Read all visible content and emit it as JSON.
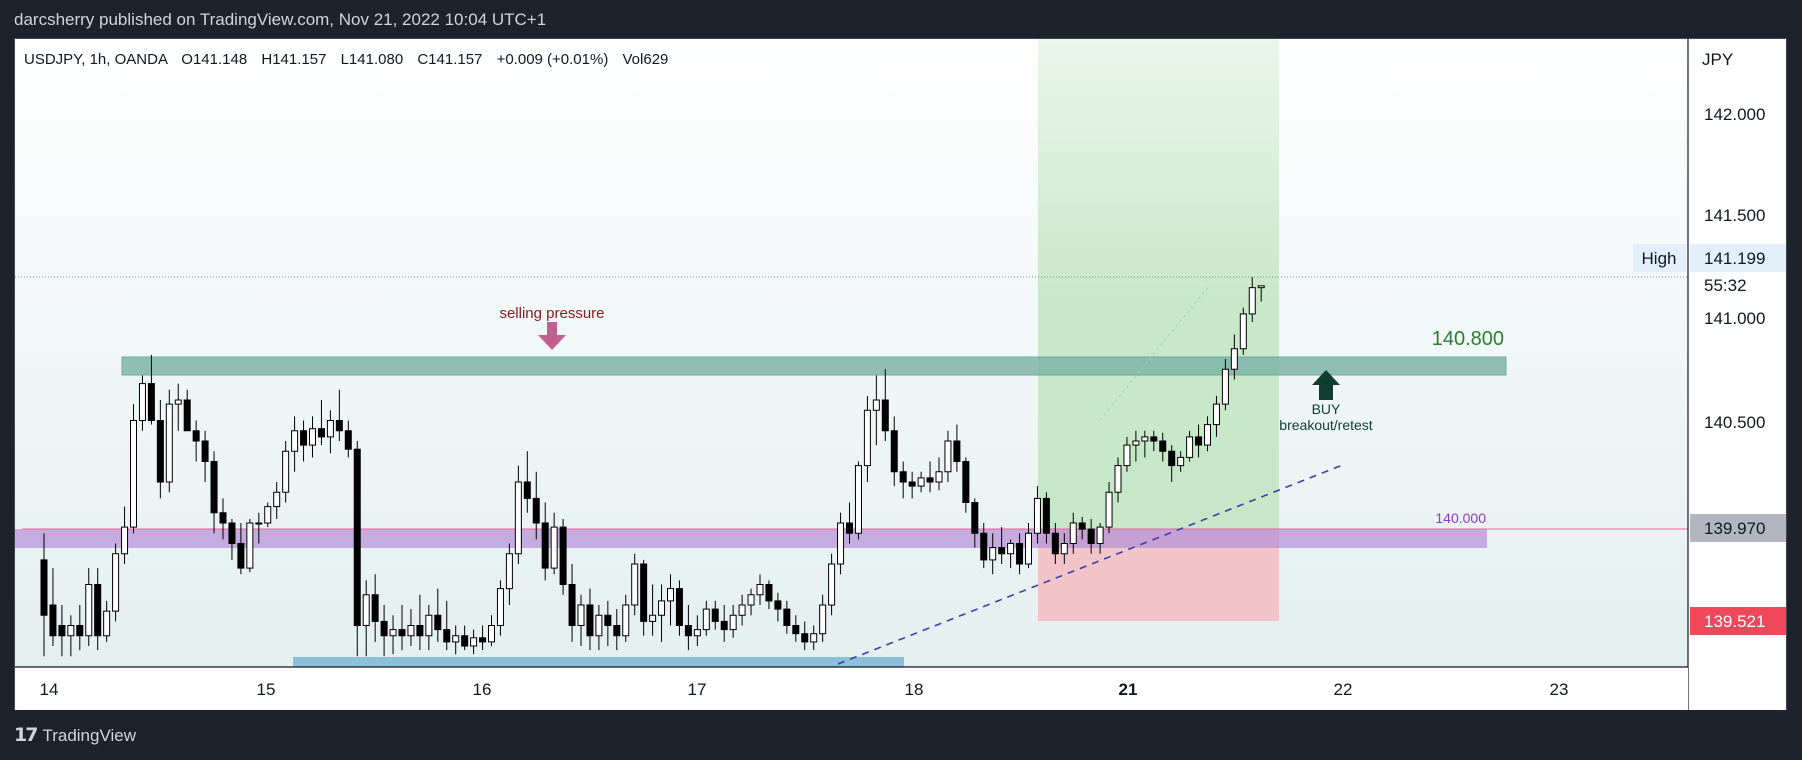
{
  "header": {
    "publisher": "darcsherry published on TradingView.com, Nov 21, 2022 10:04 UTC+1"
  },
  "footer": {
    "brand": "TradingView"
  },
  "legend": {
    "symbol": "USDJPY, 1h, OANDA",
    "open": "O141.148",
    "high": "H141.157",
    "low": "L141.080",
    "close": "C141.157",
    "change": "+0.009 (+0.01%)",
    "volume": "Vol629"
  },
  "price_axis": {
    "currency": "JPY",
    "ticks": [
      "142.000",
      "141.500",
      "141.000",
      "140.500"
    ],
    "high_label": "High",
    "high_value": "141.199",
    "countdown": "55:32",
    "marker_gray": "139.970",
    "marker_red": "139.521"
  },
  "time_axis": {
    "ticks": [
      "14",
      "15",
      "16",
      "17",
      "18",
      "21",
      "22",
      "23"
    ]
  },
  "annotations": {
    "selling": "selling pressure",
    "resistance_label": "140.800",
    "support_label": "140.000",
    "buy": "BUY",
    "buy_sub": "breakout/retest"
  },
  "colors": {
    "background": "#1e222d",
    "up_body": "#ffffff",
    "down_body": "#000000",
    "resistance_zone": "#7fb5a8",
    "support_zone": "#b48fd8",
    "profit_zone": "#b9e4b9",
    "stop_zone": "#f3b9bf",
    "trend_line": "#3a3fa8",
    "sell_arrow": "#c0608f",
    "buy_arrow": "#0f3d2e",
    "price_red": "#f0485b"
  },
  "chart_data": {
    "type": "candlestick",
    "symbol": "USDJPY",
    "timeframe": "1h",
    "ylim": [
      139.35,
      142.3
    ],
    "x_ticks": [
      "14",
      "15",
      "16",
      "17",
      "18",
      "21",
      "22",
      "23"
    ],
    "levels": {
      "resistance": 140.8,
      "support": 140.0,
      "last_high": 141.199
    },
    "trade": {
      "entry": 139.97,
      "target": 141.1,
      "stop": 139.521
    },
    "candles": [
      [
        139.82,
        139.95,
        139.35,
        139.55
      ],
      [
        139.6,
        139.78,
        139.4,
        139.45
      ],
      [
        139.5,
        139.6,
        139.35,
        139.45
      ],
      [
        139.45,
        139.55,
        139.35,
        139.5
      ],
      [
        139.5,
        139.6,
        139.38,
        139.45
      ],
      [
        139.45,
        139.78,
        139.4,
        139.7
      ],
      [
        139.7,
        139.78,
        139.38,
        139.45
      ],
      [
        139.45,
        139.62,
        139.42,
        139.57
      ],
      [
        139.57,
        139.9,
        139.52,
        139.85
      ],
      [
        139.85,
        140.08,
        139.8,
        139.98
      ],
      [
        139.98,
        140.58,
        139.95,
        140.5
      ],
      [
        140.5,
        140.72,
        140.45,
        140.68
      ],
      [
        140.68,
        140.82,
        140.48,
        140.5
      ],
      [
        140.5,
        140.6,
        140.12,
        140.2
      ],
      [
        140.2,
        140.65,
        140.15,
        140.58
      ],
      [
        140.58,
        140.68,
        140.45,
        140.6
      ],
      [
        140.6,
        140.65,
        140.45,
        140.45
      ],
      [
        140.45,
        140.5,
        140.3,
        140.4
      ],
      [
        140.4,
        140.45,
        140.2,
        140.3
      ],
      [
        140.3,
        140.35,
        139.95,
        140.05
      ],
      [
        140.05,
        140.12,
        139.92,
        140.0
      ],
      [
        140.0,
        140.02,
        139.82,
        139.9
      ],
      [
        139.9,
        140.0,
        139.75,
        139.78
      ],
      [
        139.78,
        140.02,
        139.76,
        140.0
      ],
      [
        140.0,
        140.05,
        139.9,
        140.0
      ],
      [
        140.0,
        140.1,
        139.98,
        140.08
      ],
      [
        140.08,
        140.2,
        140.02,
        140.15
      ],
      [
        140.15,
        140.4,
        140.1,
        140.35
      ],
      [
        140.35,
        140.52,
        140.25,
        140.45
      ],
      [
        140.45,
        140.5,
        140.3,
        140.38
      ],
      [
        140.38,
        140.52,
        140.32,
        140.46
      ],
      [
        140.46,
        140.6,
        140.38,
        140.42
      ],
      [
        140.42,
        140.55,
        140.34,
        140.5
      ],
      [
        140.5,
        140.65,
        140.4,
        140.45
      ],
      [
        140.45,
        140.5,
        140.32,
        140.36
      ],
      [
        140.36,
        140.4,
        139.35,
        139.5
      ],
      [
        139.5,
        139.72,
        139.35,
        139.65
      ],
      [
        139.65,
        139.75,
        139.42,
        139.52
      ],
      [
        139.52,
        139.6,
        139.35,
        139.45
      ],
      [
        139.45,
        139.55,
        139.36,
        139.48
      ],
      [
        139.48,
        139.6,
        139.38,
        139.45
      ],
      [
        139.45,
        139.58,
        139.4,
        139.5
      ],
      [
        139.5,
        139.65,
        139.38,
        139.45
      ],
      [
        139.45,
        139.6,
        139.38,
        139.55
      ],
      [
        139.55,
        139.68,
        139.42,
        139.48
      ],
      [
        139.48,
        139.62,
        139.38,
        139.42
      ],
      [
        139.42,
        139.5,
        139.36,
        139.45
      ],
      [
        139.45,
        139.5,
        139.38,
        139.4
      ],
      [
        139.4,
        139.48,
        139.36,
        139.44
      ],
      [
        139.44,
        139.5,
        139.38,
        139.42
      ],
      [
        139.42,
        139.55,
        139.4,
        139.5
      ],
      [
        139.5,
        139.72,
        139.45,
        139.68
      ],
      [
        139.68,
        139.9,
        139.6,
        139.85
      ],
      [
        139.85,
        140.28,
        139.8,
        140.2
      ],
      [
        140.2,
        140.35,
        140.05,
        140.12
      ],
      [
        140.12,
        140.25,
        139.92,
        140.0
      ],
      [
        140.0,
        140.1,
        139.72,
        139.78
      ],
      [
        139.78,
        140.05,
        139.75,
        139.98
      ],
      [
        139.98,
        140.02,
        139.65,
        139.7
      ],
      [
        139.7,
        139.8,
        139.42,
        139.5
      ],
      [
        139.5,
        139.65,
        139.4,
        139.6
      ],
      [
        139.6,
        139.68,
        139.38,
        139.45
      ],
      [
        139.45,
        139.6,
        139.38,
        139.55
      ],
      [
        139.55,
        139.62,
        139.4,
        139.5
      ],
      [
        139.5,
        139.58,
        139.38,
        139.45
      ],
      [
        139.45,
        139.65,
        139.42,
        139.6
      ],
      [
        139.6,
        139.85,
        139.55,
        139.8
      ],
      [
        139.8,
        139.82,
        139.45,
        139.52
      ],
      [
        139.52,
        139.7,
        139.45,
        139.55
      ],
      [
        139.55,
        139.7,
        139.42,
        139.62
      ],
      [
        139.62,
        139.75,
        139.5,
        139.68
      ],
      [
        139.68,
        139.72,
        139.45,
        139.5
      ],
      [
        139.5,
        139.6,
        139.38,
        139.45
      ],
      [
        139.45,
        139.55,
        139.4,
        139.48
      ],
      [
        139.48,
        139.62,
        139.45,
        139.58
      ],
      [
        139.58,
        139.62,
        139.48,
        139.52
      ],
      [
        139.52,
        139.6,
        139.42,
        139.48
      ],
      [
        139.48,
        139.6,
        139.44,
        139.55
      ],
      [
        139.55,
        139.65,
        139.5,
        139.6
      ],
      [
        139.6,
        139.68,
        139.55,
        139.65
      ],
      [
        139.65,
        139.75,
        139.6,
        139.7
      ],
      [
        139.7,
        139.72,
        139.58,
        139.62
      ],
      [
        139.62,
        139.66,
        139.52,
        139.58
      ],
      [
        139.58,
        139.62,
        139.46,
        139.5
      ],
      [
        139.5,
        139.55,
        139.42,
        139.46
      ],
      [
        139.46,
        139.52,
        139.38,
        139.42
      ],
      [
        139.42,
        139.5,
        139.38,
        139.46
      ],
      [
        139.46,
        139.65,
        139.42,
        139.6
      ],
      [
        139.6,
        139.85,
        139.55,
        139.8
      ],
      [
        139.8,
        140.05,
        139.75,
        140.0
      ],
      [
        140.0,
        140.1,
        139.9,
        139.95
      ],
      [
        139.95,
        140.3,
        139.92,
        140.28
      ],
      [
        140.28,
        140.62,
        140.2,
        140.55
      ],
      [
        140.55,
        140.72,
        140.38,
        140.6
      ],
      [
        140.6,
        140.75,
        140.4,
        140.45
      ],
      [
        140.45,
        140.52,
        140.18,
        140.25
      ],
      [
        140.25,
        140.3,
        140.12,
        140.2
      ],
      [
        140.2,
        140.25,
        140.12,
        140.18
      ],
      [
        140.18,
        140.25,
        140.15,
        140.22
      ],
      [
        140.22,
        140.3,
        140.15,
        140.2
      ],
      [
        140.2,
        140.32,
        140.16,
        140.25
      ],
      [
        140.25,
        140.45,
        140.2,
        140.4
      ],
      [
        140.4,
        140.48,
        140.25,
        140.3
      ],
      [
        140.3,
        140.32,
        140.05,
        140.1
      ],
      [
        140.1,
        140.12,
        139.88,
        139.95
      ],
      [
        139.95,
        140.0,
        139.78,
        139.82
      ],
      [
        139.82,
        139.95,
        139.75,
        139.88
      ],
      [
        139.88,
        139.98,
        139.8,
        139.85
      ],
      [
        139.85,
        139.92,
        139.78,
        139.9
      ],
      [
        139.9,
        139.95,
        139.75,
        139.8
      ],
      [
        139.8,
        140.0,
        139.78,
        139.95
      ],
      [
        139.95,
        140.18,
        139.9,
        140.12
      ],
      [
        140.12,
        140.15,
        139.9,
        139.95
      ],
      [
        139.95,
        140.0,
        139.8,
        139.85
      ],
      [
        139.85,
        139.95,
        139.8,
        139.9
      ],
      [
        139.9,
        140.05,
        139.85,
        140.0
      ],
      [
        140.0,
        140.03,
        139.92,
        139.97
      ],
      [
        139.97,
        140.02,
        139.85,
        139.9
      ],
      [
        139.9,
        140.0,
        139.85,
        139.98
      ],
      [
        139.98,
        140.2,
        139.95,
        140.15
      ],
      [
        140.15,
        140.32,
        140.1,
        140.28
      ],
      [
        140.28,
        140.42,
        140.25,
        140.38
      ],
      [
        140.38,
        140.45,
        140.3,
        140.4
      ],
      [
        140.4,
        140.45,
        140.32,
        140.42
      ],
      [
        140.42,
        140.45,
        140.35,
        140.4
      ],
      [
        140.4,
        140.44,
        140.3,
        140.35
      ],
      [
        140.35,
        140.38,
        140.2,
        140.28
      ],
      [
        140.28,
        140.35,
        140.25,
        140.32
      ],
      [
        140.32,
        140.45,
        140.3,
        140.42
      ],
      [
        140.42,
        140.48,
        140.32,
        140.38
      ],
      [
        140.38,
        140.52,
        140.35,
        140.48
      ],
      [
        140.48,
        140.62,
        140.42,
        140.58
      ],
      [
        140.58,
        140.8,
        140.55,
        140.75
      ],
      [
        140.75,
        140.92,
        140.7,
        140.85
      ],
      [
        140.85,
        141.05,
        140.82,
        141.02
      ],
      [
        141.02,
        141.199,
        140.98,
        141.148
      ],
      [
        141.148,
        141.157,
        141.08,
        141.157
      ]
    ]
  }
}
